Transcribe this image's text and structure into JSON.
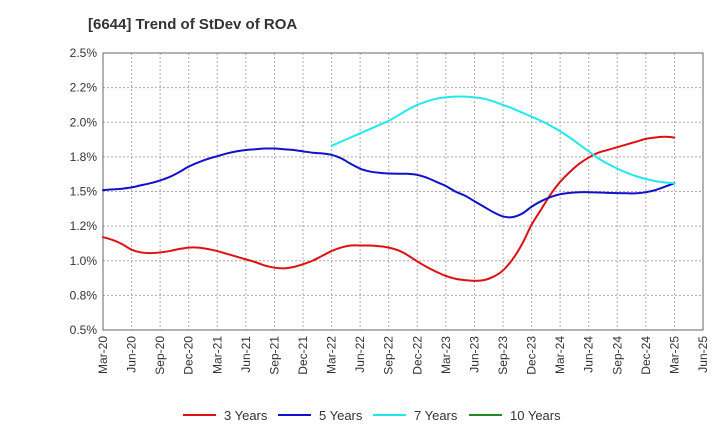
{
  "chart_data": {
    "type": "line",
    "title": "[6644]  Trend of StDev of ROA",
    "xlabel": "",
    "ylabel": "",
    "ylim": [
      0.5,
      2.5
    ],
    "y_ticks": [
      {
        "value": 0.5,
        "label": "0.5%"
      },
      {
        "value": 0.75,
        "label": "0.8%"
      },
      {
        "value": 1.0,
        "label": "1.0%"
      },
      {
        "value": 1.25,
        "label": "1.2%"
      },
      {
        "value": 1.5,
        "label": "1.5%"
      },
      {
        "value": 1.75,
        "label": "1.8%"
      },
      {
        "value": 2.0,
        "label": "2.0%"
      },
      {
        "value": 2.25,
        "label": "2.2%"
      },
      {
        "value": 2.5,
        "label": "2.5%"
      }
    ],
    "x_ticks": [
      "Mar-20",
      "Jun-20",
      "Sep-20",
      "Dec-20",
      "Mar-21",
      "Jun-21",
      "Sep-21",
      "Dec-21",
      "Mar-22",
      "Jun-22",
      "Sep-22",
      "Dec-22",
      "Mar-23",
      "Jun-23",
      "Sep-23",
      "Dec-23",
      "Mar-24",
      "Jun-24",
      "Sep-24",
      "Dec-24",
      "Mar-25",
      "Jun-25"
    ],
    "grid": true,
    "legend_position": "bottom",
    "series": [
      {
        "name": "3 Years",
        "color": "#dd1111",
        "x": [
          "Mar-20",
          "Apr-20",
          "May-20",
          "Jun-20",
          "Jul-20",
          "Aug-20",
          "Sep-20",
          "Oct-20",
          "Nov-20",
          "Dec-20",
          "Jan-21",
          "Feb-21",
          "Mar-21",
          "Apr-21",
          "May-21",
          "Jun-21",
          "Jul-21",
          "Aug-21",
          "Sep-21",
          "Oct-21",
          "Nov-21",
          "Dec-21",
          "Jan-22",
          "Feb-22",
          "Mar-22",
          "Apr-22",
          "May-22",
          "Jun-22",
          "Jul-22",
          "Aug-22",
          "Sep-22",
          "Oct-22",
          "Nov-22",
          "Dec-22",
          "Jan-23",
          "Feb-23",
          "Mar-23",
          "Apr-23",
          "May-23",
          "Jun-23",
          "Jul-23",
          "Aug-23",
          "Sep-23",
          "Oct-23",
          "Nov-23",
          "Dec-23",
          "Jan-24",
          "Feb-24",
          "Mar-24",
          "Apr-24",
          "May-24",
          "Jun-24",
          "Jul-24",
          "Aug-24",
          "Sep-24",
          "Oct-24",
          "Nov-24",
          "Dec-24",
          "Jan-25",
          "Feb-25",
          "Mar-25"
        ],
        "values": [
          1.17,
          1.15,
          1.12,
          1.08,
          1.06,
          1.055,
          1.06,
          1.07,
          1.085,
          1.095,
          1.095,
          1.085,
          1.07,
          1.05,
          1.03,
          1.01,
          0.99,
          0.965,
          0.95,
          0.945,
          0.955,
          0.975,
          1.0,
          1.035,
          1.07,
          1.095,
          1.11,
          1.11,
          1.11,
          1.105,
          1.095,
          1.075,
          1.04,
          0.995,
          0.955,
          0.92,
          0.89,
          0.87,
          0.86,
          0.855,
          0.86,
          0.885,
          0.93,
          1.01,
          1.12,
          1.26,
          1.37,
          1.48,
          1.57,
          1.64,
          1.7,
          1.745,
          1.78,
          1.8,
          1.82,
          1.84,
          1.86,
          1.88,
          1.89,
          1.895,
          1.89
        ]
      },
      {
        "name": "5 Years",
        "color": "#1111cc",
        "x": [
          "Mar-20",
          "Apr-20",
          "May-20",
          "Jun-20",
          "Jul-20",
          "Aug-20",
          "Sep-20",
          "Oct-20",
          "Nov-20",
          "Dec-20",
          "Jan-21",
          "Feb-21",
          "Mar-21",
          "Apr-21",
          "May-21",
          "Jun-21",
          "Jul-21",
          "Aug-21",
          "Sep-21",
          "Oct-21",
          "Nov-21",
          "Dec-21",
          "Jan-22",
          "Feb-22",
          "Mar-22",
          "Apr-22",
          "May-22",
          "Jun-22",
          "Jul-22",
          "Aug-22",
          "Sep-22",
          "Oct-22",
          "Nov-22",
          "Dec-22",
          "Jan-23",
          "Feb-23",
          "Mar-23",
          "Apr-23",
          "May-23",
          "Jun-23",
          "Jul-23",
          "Aug-23",
          "Sep-23",
          "Oct-23",
          "Nov-23",
          "Dec-23",
          "Jan-24",
          "Feb-24",
          "Mar-24",
          "Apr-24",
          "May-24",
          "Jun-24",
          "Jul-24",
          "Aug-24",
          "Sep-24",
          "Oct-24",
          "Nov-24",
          "Dec-24",
          "Jan-25",
          "Feb-25",
          "Mar-25"
        ],
        "values": [
          1.51,
          1.515,
          1.52,
          1.53,
          1.545,
          1.56,
          1.58,
          1.605,
          1.64,
          1.68,
          1.71,
          1.735,
          1.755,
          1.775,
          1.79,
          1.8,
          1.805,
          1.81,
          1.81,
          1.805,
          1.8,
          1.79,
          1.78,
          1.775,
          1.765,
          1.74,
          1.7,
          1.665,
          1.645,
          1.635,
          1.63,
          1.628,
          1.628,
          1.62,
          1.6,
          1.57,
          1.54,
          1.5,
          1.47,
          1.43,
          1.39,
          1.35,
          1.32,
          1.315,
          1.34,
          1.39,
          1.43,
          1.46,
          1.48,
          1.49,
          1.495,
          1.495,
          1.493,
          1.49,
          1.488,
          1.487,
          1.487,
          1.495,
          1.51,
          1.535,
          1.56
        ]
      },
      {
        "name": "7 Years",
        "color": "#22e8ee",
        "x": [
          "Mar-22",
          "Apr-22",
          "May-22",
          "Jun-22",
          "Jul-22",
          "Aug-22",
          "Sep-22",
          "Oct-22",
          "Nov-22",
          "Dec-22",
          "Jan-23",
          "Feb-23",
          "Mar-23",
          "Apr-23",
          "May-23",
          "Jun-23",
          "Jul-23",
          "Aug-23",
          "Sep-23",
          "Oct-23",
          "Nov-23",
          "Dec-23",
          "Jan-24",
          "Feb-24",
          "Mar-24",
          "Apr-24",
          "May-24",
          "Jun-24",
          "Jul-24",
          "Aug-24",
          "Sep-24",
          "Oct-24",
          "Nov-24",
          "Dec-24",
          "Jan-25",
          "Feb-25",
          "Mar-25"
        ],
        "values": [
          1.83,
          1.86,
          1.89,
          1.92,
          1.95,
          1.98,
          2.01,
          2.05,
          2.09,
          2.125,
          2.15,
          2.17,
          2.18,
          2.185,
          2.185,
          2.18,
          2.17,
          2.15,
          2.125,
          2.1,
          2.07,
          2.04,
          2.01,
          1.975,
          1.935,
          1.89,
          1.84,
          1.79,
          1.74,
          1.7,
          1.665,
          1.635,
          1.61,
          1.59,
          1.575,
          1.565,
          1.56
        ]
      },
      {
        "name": "10 Years",
        "color": "#228822",
        "x": [],
        "values": []
      }
    ]
  }
}
